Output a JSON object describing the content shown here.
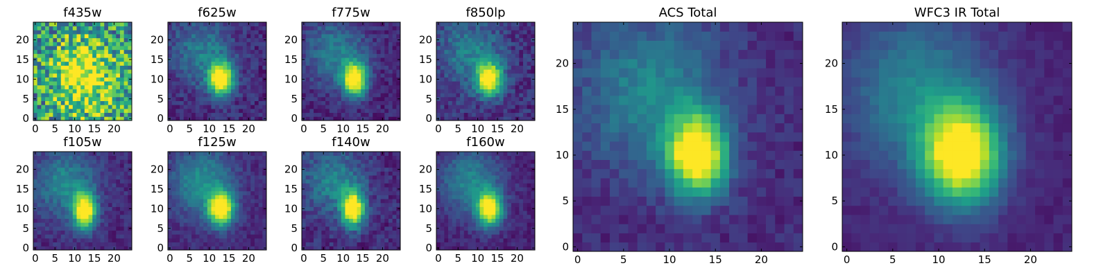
{
  "chart_data": [
    {
      "type": "heatmap",
      "title": "f435w",
      "xlim": [
        0,
        24
      ],
      "ylim": [
        0,
        24
      ],
      "x_ticks": [
        0,
        5,
        10,
        15,
        20
      ],
      "y_ticks": [
        0,
        5,
        10,
        15,
        20
      ],
      "source": {
        "center_x": 12.5,
        "center_y": 11,
        "sigma_x": 5,
        "sigma_y": 6,
        "peak": 0.55,
        "background": 0.55,
        "noise": 0.35,
        "halo": 0.0
      }
    },
    {
      "type": "heatmap",
      "title": "f625w",
      "xlim": [
        0,
        24
      ],
      "ylim": [
        0,
        24
      ],
      "x_ticks": [
        0,
        5,
        10,
        15,
        20
      ],
      "y_ticks": [
        0,
        5,
        10,
        15,
        20
      ],
      "source": {
        "center_x": 13,
        "center_y": 10,
        "sigma_x": 2.2,
        "sigma_y": 3.0,
        "peak": 1.0,
        "background": 0.12,
        "noise": 0.1,
        "halo": 0.3
      }
    },
    {
      "type": "heatmap",
      "title": "f775w",
      "xlim": [
        0,
        24
      ],
      "ylim": [
        0,
        24
      ],
      "x_ticks": [
        0,
        5,
        10,
        15,
        20
      ],
      "y_ticks": [
        0,
        5,
        10,
        15,
        20
      ],
      "source": {
        "center_x": 13,
        "center_y": 10,
        "sigma_x": 2.2,
        "sigma_y": 3.0,
        "peak": 1.0,
        "background": 0.1,
        "noise": 0.09,
        "halo": 0.33
      }
    },
    {
      "type": "heatmap",
      "title": "f850lp",
      "xlim": [
        0,
        24
      ],
      "ylim": [
        0,
        24
      ],
      "x_ticks": [
        0,
        5,
        10,
        15,
        20
      ],
      "y_ticks": [
        0,
        5,
        10,
        15,
        20
      ],
      "source": {
        "center_x": 13,
        "center_y": 10,
        "sigma_x": 2.3,
        "sigma_y": 3.0,
        "peak": 0.95,
        "background": 0.14,
        "noise": 0.11,
        "halo": 0.3
      }
    },
    {
      "type": "heatmap",
      "title": "ACS Total",
      "xlim": [
        0,
        24
      ],
      "ylim": [
        0,
        24
      ],
      "x_ticks": [
        0,
        5,
        10,
        15,
        20
      ],
      "y_ticks": [
        0,
        5,
        10,
        15,
        20
      ],
      "source": {
        "center_x": 13,
        "center_y": 10,
        "sigma_x": 2.3,
        "sigma_y": 3.0,
        "peak": 1.0,
        "background": 0.12,
        "noise": 0.07,
        "halo": 0.35
      }
    },
    {
      "type": "heatmap",
      "title": "f105w",
      "xlim": [
        0,
        24
      ],
      "ylim": [
        0,
        24
      ],
      "x_ticks": [
        0,
        5,
        10,
        15,
        20
      ],
      "y_ticks": [
        0,
        5,
        10,
        15,
        20
      ],
      "source": {
        "center_x": 12.5,
        "center_y": 9.5,
        "sigma_x": 2.0,
        "sigma_y": 3.2,
        "peak": 1.0,
        "background": 0.12,
        "noise": 0.08,
        "halo": 0.35
      }
    },
    {
      "type": "heatmap",
      "title": "f125w",
      "xlim": [
        0,
        24
      ],
      "ylim": [
        0,
        24
      ],
      "x_ticks": [
        0,
        5,
        10,
        15,
        20
      ],
      "y_ticks": [
        0,
        5,
        10,
        15,
        20
      ],
      "source": {
        "center_x": 13,
        "center_y": 10,
        "sigma_x": 2.3,
        "sigma_y": 3.0,
        "peak": 1.0,
        "background": 0.12,
        "noise": 0.07,
        "halo": 0.38
      }
    },
    {
      "type": "heatmap",
      "title": "f140w",
      "xlim": [
        0,
        24
      ],
      "ylim": [
        0,
        24
      ],
      "x_ticks": [
        0,
        5,
        10,
        15,
        20
      ],
      "y_ticks": [
        0,
        5,
        10,
        15,
        20
      ],
      "source": {
        "center_x": 12.5,
        "center_y": 10,
        "sigma_x": 2.0,
        "sigma_y": 3.2,
        "peak": 1.0,
        "background": 0.12,
        "noise": 0.1,
        "halo": 0.33
      }
    },
    {
      "type": "heatmap",
      "title": "f160w",
      "xlim": [
        0,
        24
      ],
      "ylim": [
        0,
        24
      ],
      "x_ticks": [
        0,
        5,
        10,
        15,
        20
      ],
      "y_ticks": [
        0,
        5,
        10,
        15,
        20
      ],
      "source": {
        "center_x": 13,
        "center_y": 10,
        "sigma_x": 2.2,
        "sigma_y": 3.0,
        "peak": 1.0,
        "background": 0.1,
        "noise": 0.07,
        "halo": 0.36
      }
    },
    {
      "type": "heatmap",
      "title": "WFC3 IR Total",
      "xlim": [
        0,
        24
      ],
      "ylim": [
        0,
        24
      ],
      "x_ticks": [
        0,
        5,
        10,
        15,
        20
      ],
      "y_ticks": [
        0,
        5,
        10,
        15,
        20
      ],
      "source": {
        "center_x": 12.5,
        "center_y": 10,
        "sigma_x": 3.0,
        "sigma_y": 3.8,
        "peak": 1.0,
        "background": 0.1,
        "noise": 0.04,
        "halo": 0.35
      }
    }
  ],
  "colormap": [
    "#440154",
    "#482878",
    "#3e4989",
    "#31688e",
    "#26828e",
    "#1f9e89",
    "#35b779",
    "#6ece58",
    "#b5de2b",
    "#fde725"
  ],
  "colors": {
    "axis": "#000000",
    "background": "#ffffff"
  }
}
